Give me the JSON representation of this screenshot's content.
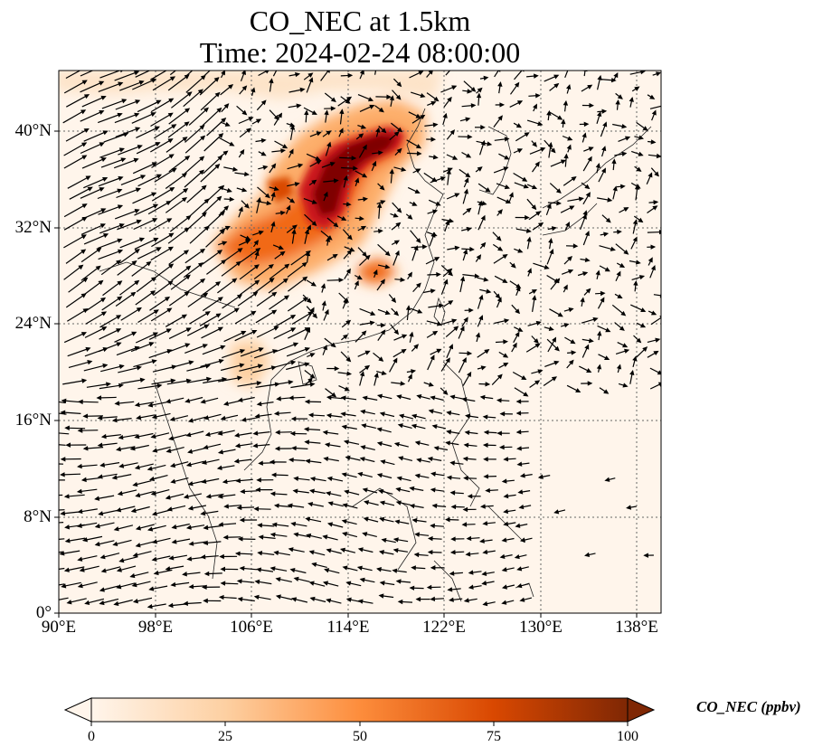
{
  "title_line1": "CO_NEC at 1.5km",
  "title_line2": "Time: 2024-02-24 08:00:00",
  "lat_ticks": [
    "40°N",
    "32°N",
    "24°N",
    "16°N",
    "8°N",
    "0°"
  ],
  "lon_ticks": [
    "90°E",
    "98°E",
    "106°E",
    "114°E",
    "122°E",
    "130°E",
    "138°E"
  ],
  "colorbar": {
    "label": "CO_NEC (ppbv)",
    "ticks": [
      "0",
      "25",
      "50",
      "75",
      "100"
    ],
    "colors": [
      "#fff5eb",
      "#fdd0a2",
      "#fd8d3c",
      "#d94801",
      "#7f2704"
    ],
    "extend": "both"
  },
  "map": {
    "lon_range": [
      90,
      140
    ],
    "lat_range": [
      0,
      45
    ],
    "gridline_style": "dotted",
    "field_name": "CO_NEC",
    "background_color": "#fff5eb",
    "high_value_color": "#7f0000",
    "vectors": "wind arrows"
  }
}
